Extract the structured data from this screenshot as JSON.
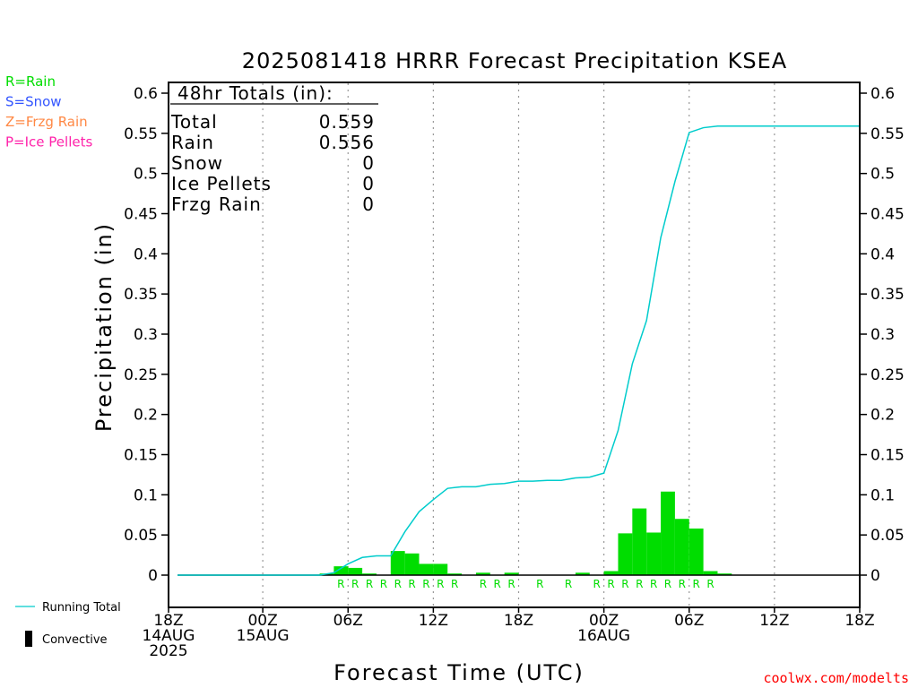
{
  "chart_data": {
    "type": "bar",
    "title": "2025081418 HRRR Forecast Precipitation KSEA",
    "xlabel": "Forecast Time (UTC)",
    "ylabel": "Precipitation (in)",
    "ylim": [
      0,
      0.6
    ],
    "y_ticks": [
      "0",
      "0.05",
      "0.1",
      "0.15",
      "0.2",
      "0.25",
      "0.3",
      "0.35",
      "0.4",
      "0.45",
      "0.5",
      "0.55",
      "0.6"
    ],
    "x_range_hours": [
      0,
      48
    ],
    "x_tick_labels": [
      {
        "hour": 0,
        "lines": [
          "18Z",
          "14AUG",
          "2025"
        ]
      },
      {
        "hour": 6,
        "lines": [
          "00Z",
          "15AUG"
        ]
      },
      {
        "hour": 12,
        "lines": [
          "06Z"
        ]
      },
      {
        "hour": 18,
        "lines": [
          "12Z"
        ]
      },
      {
        "hour": 24,
        "lines": [
          "18Z"
        ]
      },
      {
        "hour": 30,
        "lines": [
          "00Z",
          "16AUG"
        ]
      },
      {
        "hour": 36,
        "lines": [
          "06Z"
        ]
      },
      {
        "hour": 42,
        "lines": [
          "12Z"
        ]
      },
      {
        "hour": 48,
        "lines": [
          "18Z"
        ]
      }
    ],
    "hours": [
      1,
      2,
      3,
      4,
      5,
      6,
      7,
      8,
      9,
      10,
      11,
      12,
      13,
      14,
      15,
      16,
      17,
      18,
      19,
      20,
      21,
      22,
      23,
      24,
      25,
      26,
      27,
      28,
      29,
      30,
      31,
      32,
      33,
      34,
      35,
      36,
      37,
      38,
      39,
      40,
      41,
      42,
      43,
      44,
      45,
      46,
      47,
      48
    ],
    "series": [
      {
        "name": "Convective",
        "kind": "bar",
        "color": "#00dd00",
        "values": [
          0,
          0,
          0,
          0,
          0,
          0,
          0,
          0,
          0,
          0,
          0.002,
          0.011,
          0.009,
          0.002,
          0,
          0.03,
          0.027,
          0.014,
          0.014,
          0.002,
          0,
          0.003,
          0,
          0.003,
          0,
          0,
          0,
          0,
          0.003,
          0,
          0.005,
          0.052,
          0.083,
          0.053,
          0.104,
          0.07,
          0.058,
          0.005,
          0.002,
          0,
          0,
          0,
          0,
          0,
          0,
          0,
          0,
          0
        ]
      },
      {
        "name": "Running Total",
        "kind": "line",
        "color": "#00cccc",
        "values": [
          0,
          0,
          0,
          0,
          0,
          0,
          0,
          0,
          0,
          0,
          0.003,
          0.014,
          0.022,
          0.024,
          0.024,
          0.054,
          0.079,
          0.094,
          0.108,
          0.11,
          0.11,
          0.113,
          0.114,
          0.117,
          0.117,
          0.118,
          0.118,
          0.121,
          0.122,
          0.127,
          0.18,
          0.263,
          0.317,
          0.42,
          0.49,
          0.551,
          0.557,
          0.559,
          0.559,
          0.559,
          0.559,
          0.559,
          0.559,
          0.559,
          0.559,
          0.559,
          0.559,
          0.559
        ]
      }
    ],
    "precip_type_markers": [
      {
        "hour": 11.5,
        "label": "R"
      },
      {
        "hour": 12.5,
        "label": "R"
      },
      {
        "hour": 13.5,
        "label": "R"
      },
      {
        "hour": 14.5,
        "label": "R"
      },
      {
        "hour": 15.5,
        "label": "R"
      },
      {
        "hour": 16.5,
        "label": "R"
      },
      {
        "hour": 17.5,
        "label": "R"
      },
      {
        "hour": 18.5,
        "label": "R"
      },
      {
        "hour": 19.5,
        "label": "R"
      },
      {
        "hour": 21.5,
        "label": "R"
      },
      {
        "hour": 22.5,
        "label": "R"
      },
      {
        "hour": 23.5,
        "label": "R"
      },
      {
        "hour": 25.5,
        "label": "R"
      },
      {
        "hour": 27.5,
        "label": "R"
      },
      {
        "hour": 29.5,
        "label": "R"
      },
      {
        "hour": 30.5,
        "label": "R"
      },
      {
        "hour": 31.5,
        "label": "R"
      },
      {
        "hour": 32.5,
        "label": "R"
      },
      {
        "hour": 33.5,
        "label": "R"
      },
      {
        "hour": 34.5,
        "label": "R"
      },
      {
        "hour": 35.5,
        "label": "R"
      },
      {
        "hour": 36.5,
        "label": "R"
      },
      {
        "hour": 37.5,
        "label": "R"
      }
    ],
    "grid": "vertical dotted every 6h",
    "legend_placement": "left"
  },
  "totals_box": {
    "header": "48hr Totals (in):",
    "rows": [
      {
        "label": "Total",
        "value": "0.559"
      },
      {
        "label": "Rain",
        "value": "0.556"
      },
      {
        "label": "Snow",
        "value": "0"
      },
      {
        "label": "Ice Pellets",
        "value": "0"
      },
      {
        "label": "Frzg Rain",
        "value": "0"
      }
    ]
  },
  "type_legend": [
    {
      "text": "R=Rain",
      "color": "#00dd00"
    },
    {
      "text": "S=Snow",
      "color": "#3355ff"
    },
    {
      "text": "Z=Frzg Rain",
      "color": "#ff8844"
    },
    {
      "text": "P=Ice Pellets",
      "color": "#ff22aa"
    }
  ],
  "series_legend": {
    "running_total": "Running Total",
    "convective": "Convective"
  },
  "credit": "coolwx.com/modelts",
  "colors": {
    "bar": "#00dd00",
    "line": "#00cccc",
    "credit": "#ff0000"
  }
}
